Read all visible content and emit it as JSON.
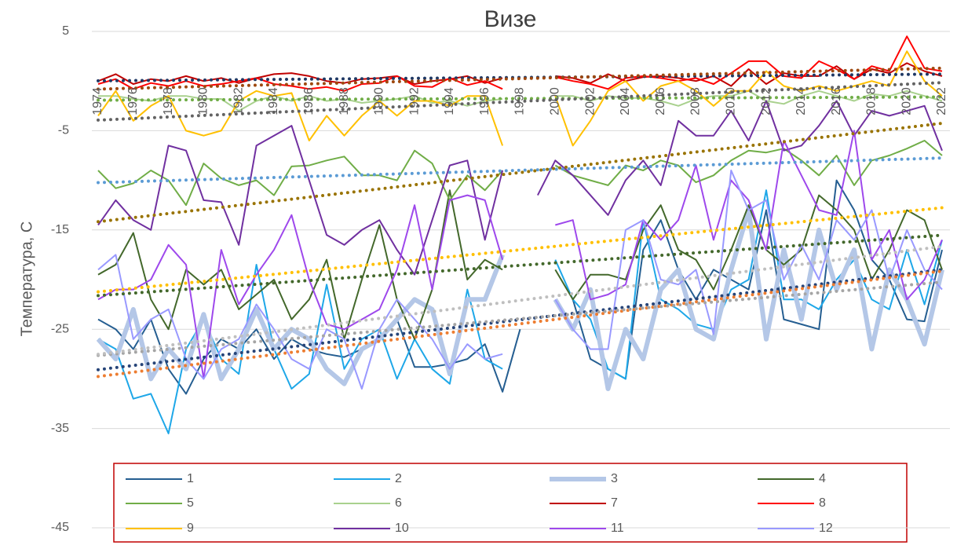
{
  "chart_data": {
    "type": "line",
    "title": "Визе",
    "y_label": "Температура, С",
    "categories": [
      "1974",
      null,
      "1976",
      null,
      "1978",
      null,
      "1980",
      null,
      "1982",
      null,
      "1984",
      null,
      "1986",
      null,
      "1988",
      null,
      "1990",
      null,
      "1992",
      null,
      "1994",
      null,
      "1996",
      null,
      "1998",
      null,
      "2000",
      null,
      "2002",
      null,
      "2004",
      null,
      "2006",
      null,
      "2008",
      null,
      "2010",
      null,
      "2012",
      null,
      "2014",
      null,
      "2016",
      null,
      "2018",
      null,
      "2020",
      null,
      "2022"
    ],
    "ylim": [
      -45,
      5
    ],
    "yticks": [
      -45,
      -35,
      -25,
      -15,
      -5,
      5
    ],
    "grid": true,
    "trendline": "linear",
    "series": [
      {
        "name": "1",
        "color": "#255e91",
        "width": 2,
        "trend_color": "#264478",
        "values": [
          -24,
          -25,
          -27,
          -24,
          -29,
          -31.5,
          -28,
          -26,
          -27,
          -25,
          -28,
          -26,
          -27,
          -27.5,
          -27.8,
          -27,
          -26,
          -24,
          -28.8,
          -28.8,
          -28.5,
          -28,
          -26.5,
          -31.3,
          -25,
          null,
          null,
          -22,
          -28,
          -29,
          -30,
          -17,
          -14,
          -19,
          -22,
          -19,
          -20,
          -21,
          -13,
          -24,
          -24.5,
          -25,
          -10,
          -13,
          -18,
          -20,
          -24,
          -24.2,
          -17
        ]
      },
      {
        "name": "2",
        "color": "#1ea7e8",
        "width": 2,
        "trend_color": "#ed7d31",
        "values": [
          -26,
          -27,
          -32,
          -31.5,
          -35.5,
          -27,
          -24,
          -28,
          -29.5,
          -18.5,
          -27,
          -31,
          -29.5,
          -20.5,
          -29,
          -26,
          -25,
          -30,
          -26,
          -29,
          -30.5,
          -21,
          -28,
          -29,
          null,
          null,
          -18,
          -22,
          -24,
          -29,
          -30,
          -14,
          -22,
          -23,
          -24.5,
          -25,
          -21,
          -20,
          -11,
          -22,
          -22,
          -23,
          -20,
          -18,
          -22,
          -23,
          -17,
          -22.5,
          -16
        ]
      },
      {
        "name": "3",
        "color": "#b4c7e7",
        "width": 6,
        "trend_color": "#a5a5a5",
        "values": [
          -26,
          -28,
          -23,
          -30,
          -27,
          -29,
          -23.5,
          -30,
          -27,
          -23,
          -27,
          -25,
          -26,
          -29,
          -30.5,
          -27,
          -26,
          -24,
          -22,
          -23,
          -29.5,
          -22,
          -22,
          -17.5,
          null,
          null,
          -22,
          -25,
          -21,
          -31,
          -25,
          -28,
          -21,
          -19,
          -25,
          -26,
          -19,
          -13,
          -26,
          -17,
          -24,
          -15,
          -21,
          -17,
          -27,
          -19,
          -22,
          -26.5,
          -19
        ]
      },
      {
        "name": "4",
        "color": "#43682b",
        "width": 2,
        "trend_color": "#43682b",
        "values": [
          -19.5,
          -18.5,
          -15.3,
          -22,
          -25,
          -19,
          -20.5,
          -19,
          -23,
          -21.5,
          -20,
          -24,
          -22,
          -18,
          -26,
          -20,
          -14.5,
          -22,
          -26,
          -21,
          -11,
          -20,
          -18,
          -19,
          null,
          null,
          -19,
          -22,
          -19.5,
          -19.5,
          -20,
          -15,
          -12.5,
          -17,
          -18,
          -21,
          -17,
          -12.5,
          -17,
          -18.5,
          -17,
          -11.5,
          -13,
          -15,
          -20,
          -17,
          -13,
          -14,
          -19
        ]
      },
      {
        "name": "5",
        "color": "#70ad47",
        "width": 2,
        "trend_color": "#5b9bd5",
        "values": [
          -9,
          -10.8,
          -10.3,
          -9,
          -10,
          -12.5,
          -8.3,
          -9.8,
          -10.5,
          -10,
          -11.5,
          -8.6,
          -8.5,
          -8,
          -7.6,
          -9.5,
          -9.5,
          -10,
          -7,
          -8.3,
          -12,
          -9.5,
          -11,
          -9,
          null,
          null,
          -8.5,
          -9.5,
          -10,
          -10.5,
          -8.5,
          -9,
          -8,
          -8.5,
          -10.2,
          -9.5,
          -8,
          -7,
          -7.2,
          -6.8,
          -8,
          -9.5,
          -7.5,
          -10.5,
          -8,
          -7.5,
          -6.8,
          -6,
          -7.5
        ]
      },
      {
        "name": "6",
        "color": "#a9d18e",
        "width": 2,
        "trend_color": "#70ad47",
        "values": [
          -1.5,
          -1.5,
          -1.8,
          -2,
          -1.5,
          -1.5,
          -1.8,
          -1.8,
          -3,
          -2,
          -1.5,
          -2,
          -1.5,
          -2,
          -1.8,
          -2.2,
          -2,
          -1.8,
          -1.5,
          -2.2,
          -2,
          -2.5,
          -2,
          -1.8,
          null,
          null,
          -1.5,
          -1.5,
          -2,
          -1.5,
          -1.7,
          -1.7,
          -2,
          -2.5,
          -1.8,
          -1.5,
          -1.5,
          -1,
          -2,
          -2.3,
          -1.5,
          -1,
          -1.5,
          -2,
          -1.3,
          -1.5,
          -1,
          -1.5,
          -2
        ]
      },
      {
        "name": "7",
        "color": "#c00000",
        "width": 2,
        "trend_color": "#1f3864",
        "values": [
          0,
          0.7,
          -0.3,
          0.2,
          0,
          0.5,
          0,
          0.3,
          -0.2,
          0.3,
          0.7,
          0.8,
          0.5,
          0,
          -0.2,
          0.2,
          0.3,
          0.5,
          -0.3,
          0,
          0.2,
          0.5,
          -0.2,
          0.3,
          null,
          null,
          0.5,
          0.3,
          -0.2,
          0.7,
          0,
          0.4,
          0.5,
          0.3,
          0,
          0.5,
          -0.5,
          1.2,
          -0.3,
          0.8,
          0.5,
          0.5,
          1.5,
          0.2,
          1.2,
          0.8,
          1.8,
          1,
          0.5
        ]
      },
      {
        "name": "8",
        "color": "#ff0000",
        "width": 2,
        "trend_color": "#9e480e",
        "values": [
          -0.3,
          0.2,
          -0.8,
          -0.2,
          -0.5,
          0,
          -0.5,
          -0.3,
          0,
          0.3,
          -0.3,
          -0.5,
          -0.8,
          -0.6,
          -1,
          -0.3,
          -0.2,
          0.5,
          -0.5,
          -0.6,
          0.3,
          -0.4,
          0,
          -0.8,
          null,
          null,
          0.4,
          0,
          -0.3,
          -0.8,
          0.3,
          0.5,
          0.3,
          0,
          0.3,
          -0.3,
          0.8,
          2,
          2,
          0.5,
          0.3,
          2,
          1.2,
          0.2,
          1.5,
          1,
          4.5,
          1.3,
          1
        ]
      },
      {
        "name": "9",
        "color": "#ffc000",
        "width": 2,
        "trend_color": "#636363",
        "values": [
          -3.5,
          -1,
          -4,
          -2.5,
          -1.5,
          -5,
          -5.5,
          -5,
          -2,
          -1,
          -1.5,
          -1.2,
          -6,
          -3.5,
          -5.5,
          -3.5,
          -2,
          -3.5,
          -2,
          -2,
          -2.5,
          -1.5,
          -1.5,
          -6.5,
          null,
          null,
          -1.5,
          -6.5,
          -4,
          -1,
          0,
          -2,
          -0.5,
          0,
          -1,
          -2.5,
          -1,
          -1,
          1,
          -0.5,
          -1,
          -0.5,
          -1,
          -0.5,
          0,
          -0.5,
          3,
          0,
          -1.5
        ]
      },
      {
        "name": "10",
        "color": "#7030a0",
        "width": 2,
        "trend_color": "#997300",
        "values": [
          -14.5,
          -12,
          -14,
          -15,
          -6.5,
          -7,
          -12,
          -12.2,
          -16.5,
          -6.5,
          -5.5,
          -4.5,
          -10,
          -15.5,
          -16.5,
          -15,
          -14,
          -17,
          -19.5,
          -14,
          -8.5,
          -8,
          -16,
          -9,
          null,
          -11.5,
          -8,
          -9.5,
          -11.5,
          -13.5,
          -10,
          -8,
          -10.5,
          -4,
          -5.5,
          -5.5,
          -3,
          -6,
          -2,
          -7,
          -6.5,
          -4.5,
          -2,
          -5.5,
          -3,
          -3.5,
          -3,
          -2.5,
          -7
        ]
      },
      {
        "name": "11",
        "color": "#9e48ec",
        "width": 2,
        "trend_color": "#ffc000",
        "values": [
          -22,
          -21,
          -21,
          -20,
          -16.5,
          -18.5,
          -30,
          -17,
          -22.5,
          -19.5,
          -17,
          -13.5,
          -20,
          -24.5,
          -25,
          -24,
          -23,
          -19,
          -12.5,
          -21,
          -12,
          -11.5,
          -12,
          -18,
          null,
          null,
          -14.5,
          -14,
          -22,
          -21.5,
          -20.5,
          -14,
          -16,
          -14,
          -8.5,
          -16,
          -10,
          -12,
          -17,
          -6,
          -9.5,
          -13,
          -13.5,
          -5,
          -18,
          -15,
          -22,
          -20,
          -16
        ]
      },
      {
        "name": "12",
        "color": "#9999ff",
        "width": 2,
        "trend_color": "#bfbfbf",
        "values": [
          -19,
          -17.5,
          -26,
          -24,
          -23,
          -28,
          -30,
          -27,
          -26,
          -22.5,
          -25,
          -28,
          -29,
          -25,
          -26,
          -31,
          -25,
          -22,
          -24,
          -26,
          -29,
          -26.5,
          -28,
          -27.5,
          null,
          null,
          -22,
          -25,
          -27,
          -27,
          -15,
          -14,
          -20,
          -20.5,
          -19,
          -25.5,
          -9,
          -13,
          -12,
          -20,
          -16.5,
          -20,
          -14,
          -16,
          -13,
          -20,
          -15,
          -19,
          -21
        ]
      }
    ]
  }
}
